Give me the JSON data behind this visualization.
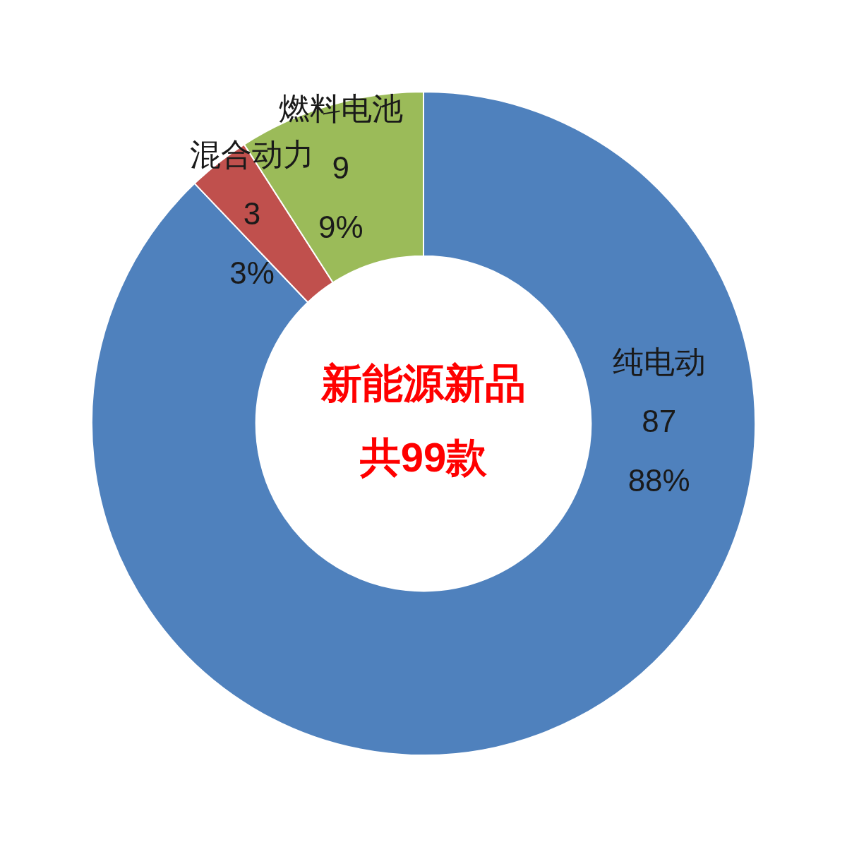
{
  "chart_data": {
    "type": "donut",
    "categories": [
      "纯电动",
      "混合动力",
      "燃料电池"
    ],
    "values": [
      87,
      3,
      9
    ],
    "colors": [
      "#4f81bd",
      "#c0504d",
      "#9bbb59"
    ],
    "value_labels": [
      "87\n88%",
      "3\n3%",
      "9\n9%"
    ],
    "annotations": [
      "新能源新品",
      "共99款"
    ]
  }
}
